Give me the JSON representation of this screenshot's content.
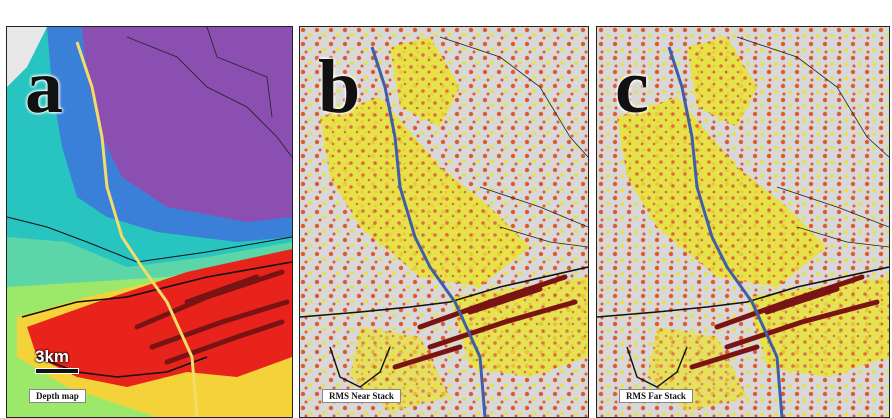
{
  "panels": [
    {
      "letter": "a",
      "caption": "Depth map"
    },
    {
      "letter": "b",
      "caption": "RMS Near Stack"
    },
    {
      "letter": "c",
      "caption": "RMS Far Stack"
    }
  ],
  "scale_bar": {
    "label": "3km"
  },
  "colors": {
    "well_track_a": "#f2dc6a",
    "well_track_bc": "#3f5ea8",
    "faults": "#7a1414",
    "depth_deep": "#8a4fb0",
    "depth_shallow": "#e8231c",
    "rms_high": "#e8e432",
    "rms_mid": "#e05a2a",
    "rms_bg": "#d8d8d8"
  }
}
